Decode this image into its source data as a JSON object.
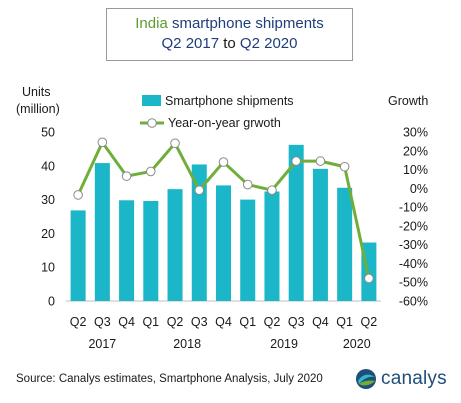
{
  "title": {
    "accent": "India",
    "main": " smartphone shipments",
    "q_start": "Q2 2017",
    "to": " to ",
    "q_end": "Q2 2020"
  },
  "colors": {
    "bar": "#1cb6c9",
    "line": "#6fae3b",
    "marker_fill": "#ffffff",
    "title_accent": "#5b9b2f",
    "title_blue": "#1f3d7a"
  },
  "footer": {
    "source": "Source: Canalys estimates, Smartphone Analysis, July 2020",
    "logo": "canalys"
  },
  "chart_data": {
    "type": "bar",
    "left_axis_title": [
      "Units",
      "(million)"
    ],
    "right_axis_title": "Growth",
    "categories": [
      "Q2",
      "Q3",
      "Q4",
      "Q1",
      "Q2",
      "Q3",
      "Q4",
      "Q1",
      "Q2",
      "Q3",
      "Q4",
      "Q1",
      "Q2"
    ],
    "years": [
      {
        "label": "2017",
        "from": 0,
        "to": 2
      },
      {
        "label": "2018",
        "from": 3,
        "to": 6
      },
      {
        "label": "2019",
        "from": 7,
        "to": 10
      },
      {
        "label": "2020",
        "from": 11,
        "to": 12
      }
    ],
    "y_left": {
      "min": 0,
      "max": 50,
      "ticks": [
        0,
        10,
        20,
        30,
        40,
        50
      ]
    },
    "y_right": {
      "min": -60,
      "max": 30,
      "ticks": [
        "30%",
        "20%",
        "10%",
        "0%",
        "-10%",
        "-20%",
        "-30%",
        "-40%",
        "-50%",
        "-60%"
      ],
      "tick_values": [
        30,
        20,
        10,
        0,
        -10,
        -20,
        -30,
        -40,
        -50,
        -60
      ]
    },
    "legend_position": "top-center",
    "series": [
      {
        "name": "Smartphone shipments",
        "type": "bar",
        "axis": "left",
        "values": [
          26.8,
          40.8,
          29.8,
          29.6,
          33.1,
          40.4,
          34.2,
          30.0,
          32.4,
          46.2,
          39.1,
          33.5,
          17.3
        ]
      },
      {
        "name": "Year-on-year grwoth",
        "type": "line",
        "axis": "right",
        "values": [
          -3.5,
          24.5,
          6.5,
          9.0,
          24.0,
          -1.0,
          14.0,
          2.0,
          -1.0,
          14.5,
          14.5,
          11.5,
          -48.0
        ]
      }
    ]
  }
}
